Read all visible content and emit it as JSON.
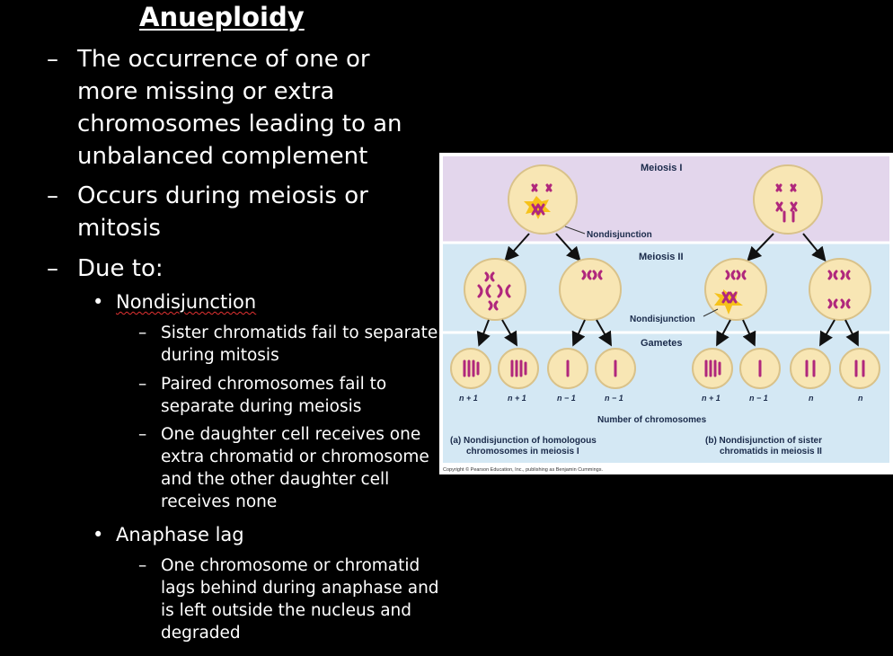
{
  "slide": {
    "title": "Anueploidy",
    "bullets": [
      {
        "text": "The occurrence of one or more missing or extra chromosomes leading to an unbalanced complement"
      },
      {
        "text": "Occurs during meiosis or mitosis"
      },
      {
        "text": "Due to:"
      }
    ],
    "sub_bullets": [
      {
        "label": "Nondisjunction",
        "items": [
          "Sister chromatids fail to separate during mitosis",
          "Paired chromosomes fail to separate during meiosis",
          "One daughter cell receives one extra chromatid or chromosome and the other daughter cell receives none"
        ]
      },
      {
        "label": "Anaphase lag",
        "items": [
          "One chromosome or chromatid lags behind during anaphase and is  left outside the nucleus and degraded"
        ]
      }
    ]
  },
  "figure": {
    "labels": {
      "meiosis1": "Meiosis I",
      "meiosis2": "Meiosis II",
      "gametes": "Gametes",
      "nondisjunction_top": "Nondisjunction",
      "nondisjunction_mid": "Nondisjunction",
      "number_of_chromosomes": "Number of chromosomes",
      "caption_a_line1": "(a) Nondisjunction of homologous",
      "caption_a_line2": "chromosomes in meiosis I",
      "caption_b_line1": "(b) Nondisjunction of sister",
      "caption_b_line2": "chromatids in meiosis II",
      "copyright": "Copyright © Pearson Education, Inc., publishing as Benjamin Cummings."
    },
    "gamete_counts": [
      "n + 1",
      "n + 1",
      "n − 1",
      "n − 1",
      "n + 1",
      "n − 1",
      "n",
      "n"
    ],
    "colors": {
      "meiosis1_band": "#e3d6ec",
      "meiosis2_band": "#d4e8f4",
      "cell_fill": "#f8e6b4",
      "cell_stroke": "#d9c28a",
      "chromosome": "#b0277c",
      "starburst": "#f6c21a"
    }
  }
}
